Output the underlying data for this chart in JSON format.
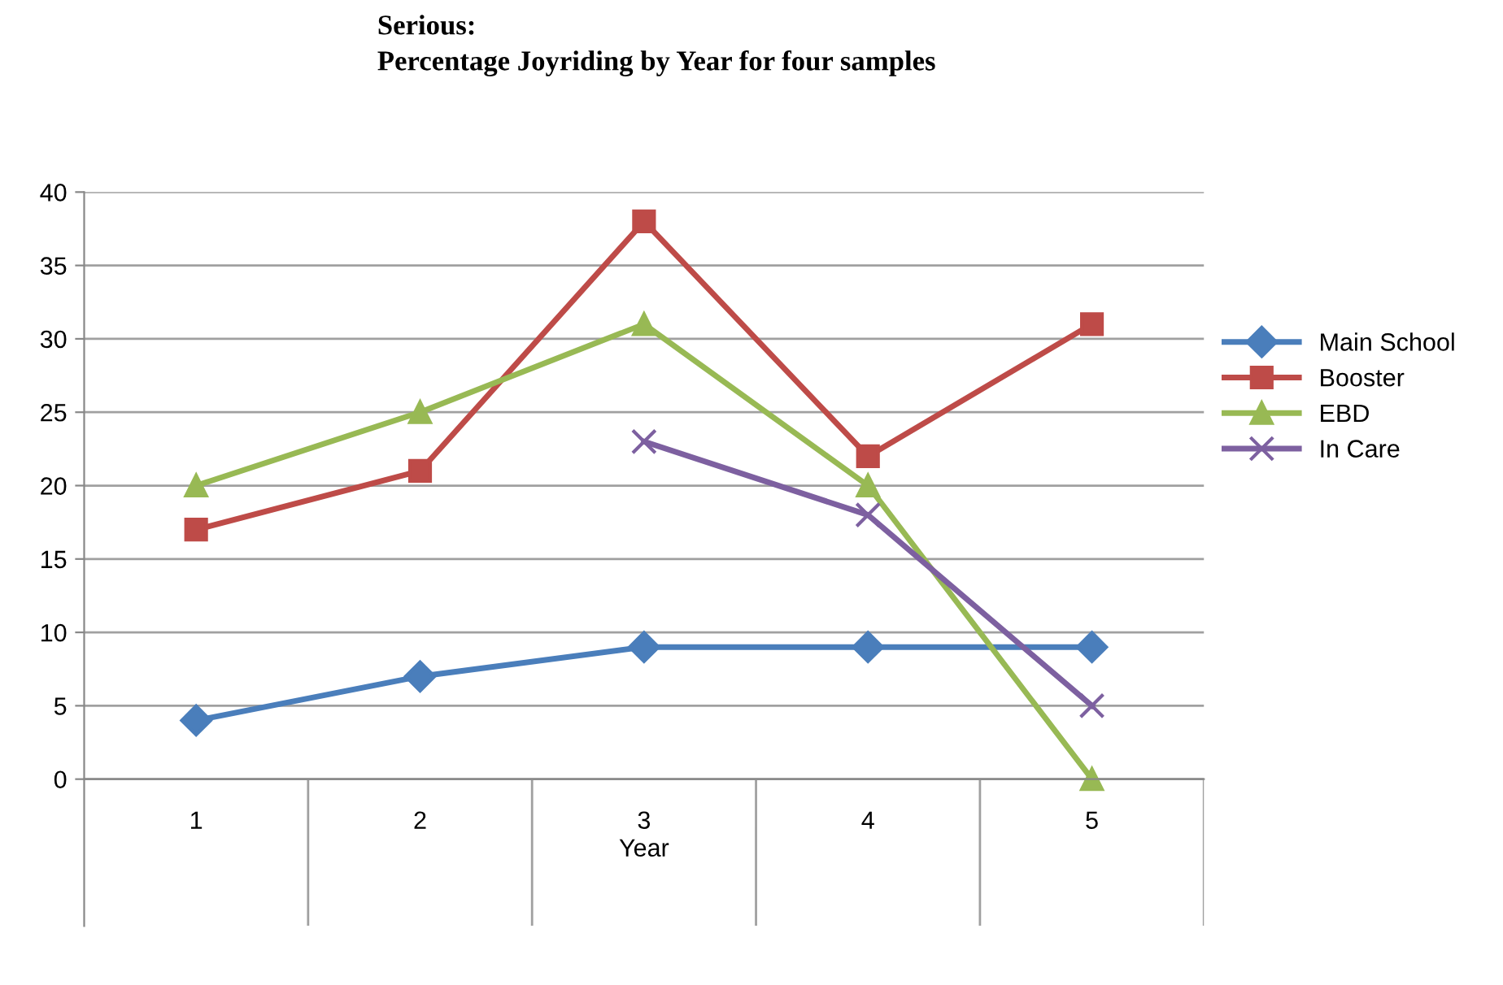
{
  "chart_data": {
    "type": "line",
    "title": "Serious:\nPercentage Joyriding by Year for four samples",
    "xlabel": "Year",
    "categories": [
      "1",
      "2",
      "3",
      "4",
      "5"
    ],
    "series": [
      {
        "name": "Main School",
        "color": "#4a7ebb",
        "marker": "diamond",
        "values": [
          4,
          7,
          9,
          9,
          9
        ]
      },
      {
        "name": "Booster",
        "color": "#be4b48",
        "marker": "square",
        "values": [
          17,
          21,
          38,
          22,
          31
        ]
      },
      {
        "name": "EBD",
        "color": "#98b954",
        "marker": "triangle",
        "values": [
          20,
          25,
          31,
          20,
          0
        ]
      },
      {
        "name": "In Care",
        "color": "#7d60a0",
        "marker": "cross",
        "values": [
          null,
          null,
          23,
          18,
          5
        ]
      }
    ],
    "ylim": [
      -10,
      40
    ],
    "yticks": [
      0,
      5,
      10,
      15,
      20,
      25,
      30,
      35,
      40
    ],
    "grid": "y",
    "legend": "right"
  }
}
